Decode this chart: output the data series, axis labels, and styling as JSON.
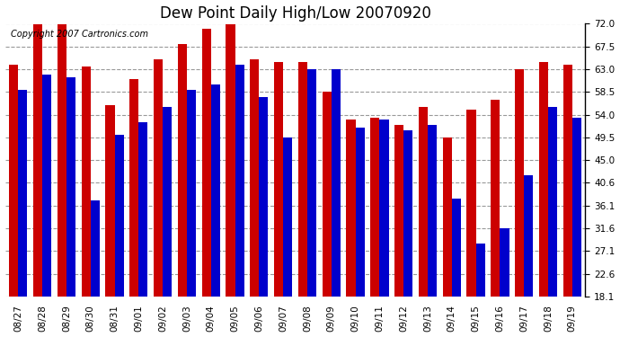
{
  "title": "Dew Point Daily High/Low 20070920",
  "copyright": "Copyright 2007 Cartronics.com",
  "dates": [
    "08/27",
    "08/28",
    "08/29",
    "08/30",
    "08/31",
    "09/01",
    "09/02",
    "09/03",
    "09/04",
    "09/05",
    "09/06",
    "09/07",
    "09/08",
    "09/09",
    "09/10",
    "09/11",
    "09/12",
    "09/13",
    "09/14",
    "09/15",
    "09/16",
    "09/17",
    "09/18",
    "09/19"
  ],
  "highs": [
    64.0,
    72.0,
    72.0,
    63.5,
    56.0,
    61.0,
    65.0,
    68.0,
    71.0,
    72.0,
    65.0,
    64.5,
    64.5,
    58.5,
    53.0,
    53.5,
    52.0,
    55.5,
    49.5,
    55.0,
    57.0,
    63.0,
    64.5,
    64.0
  ],
  "lows": [
    59.0,
    62.0,
    61.5,
    37.0,
    50.0,
    52.5,
    55.5,
    59.0,
    60.0,
    64.0,
    57.5,
    49.5,
    63.0,
    63.0,
    51.5,
    53.0,
    51.0,
    52.0,
    37.5,
    28.5,
    31.5,
    42.0,
    55.5,
    53.5
  ],
  "high_color": "#cc0000",
  "low_color": "#0000cc",
  "bg_color": "#ffffff",
  "plot_bg_color": "#ffffff",
  "grid_color": "#999999",
  "yticks": [
    18.1,
    22.6,
    27.1,
    31.6,
    36.1,
    40.6,
    45.0,
    49.5,
    54.0,
    58.5,
    63.0,
    67.5,
    72.0
  ],
  "ymin": 18.1,
  "ymax": 72.0,
  "bar_width": 0.38,
  "title_fontsize": 12,
  "tick_fontsize": 7.5,
  "copyright_fontsize": 7
}
